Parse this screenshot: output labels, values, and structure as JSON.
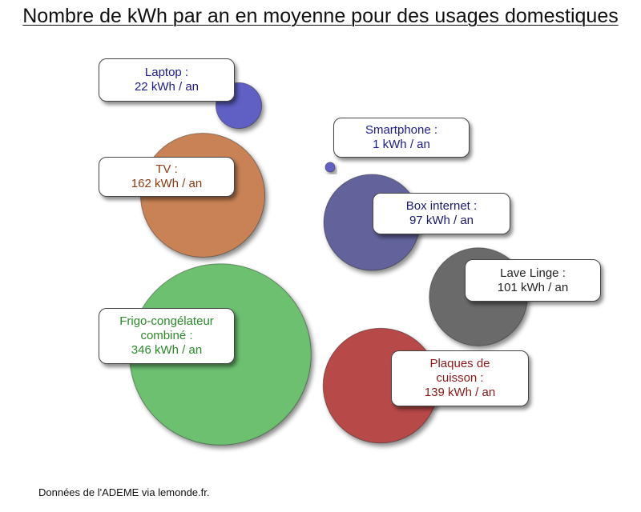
{
  "title": "Nombre de kWh par an en moyenne pour des usages domestiques",
  "source": "Données de l'ADEME via lemonde.fr.",
  "chart_data": {
    "type": "bubble",
    "unit": "kWh / an",
    "items": [
      {
        "id": "laptop",
        "name": "Laptop :",
        "value_label": "22 kWh / an",
        "value": 22,
        "color": "#5f5fc4",
        "text_color": "#1a1a8c"
      },
      {
        "id": "smartphone",
        "name": "Smartphone :",
        "value_label": "1 kWh / an",
        "value": 1,
        "color": "#5f5fc4",
        "text_color": "#1a1a8c"
      },
      {
        "id": "tv",
        "name": "TV :",
        "value_label": "162 kWh / an",
        "value": 162,
        "color": "#c88254",
        "text_color": "#8c3a14"
      },
      {
        "id": "box-internet",
        "name": "Box internet :",
        "value_label": "97 kWh / an",
        "value": 97,
        "color": "#64649c",
        "text_color": "#1a1a6c"
      },
      {
        "id": "lave-linge",
        "name": "Lave Linge :",
        "value_label": "101 kWh / an",
        "value": 101,
        "color": "#6b6b6b",
        "text_color": "#222222"
      },
      {
        "id": "frigo",
        "name_lines": [
          "Frigo-congélateur",
          "combiné :"
        ],
        "value_label": "346 kWh / an",
        "value": 346,
        "color": "#6cc070",
        "text_color": "#2a8a2a"
      },
      {
        "id": "plaques",
        "name_lines": [
          "Plaques de",
          "cuisson :"
        ],
        "value_label": "139 kWh / an",
        "value": 139,
        "color": "#b84a4a",
        "text_color": "#8c1a1a"
      }
    ]
  }
}
